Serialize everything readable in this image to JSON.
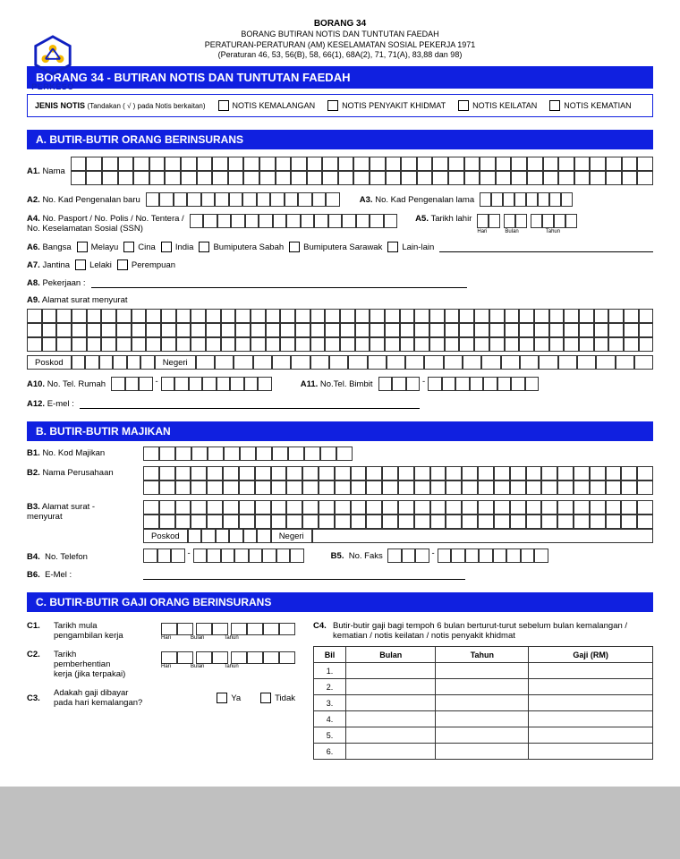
{
  "org_name": "PERKESO",
  "header": {
    "form_no": "BORANG 34",
    "line2": "BORANG BUTIRAN NOTIS DAN TUNTUTAN FAEDAH",
    "line3": "PERATURAN-PERATURAN (AM) KESELAMATAN SOSIAL PEKERJA 1971",
    "line4": "(Peraturan 46, 53, 56(B), 58, 66(1), 68A(2), 71, 71(A), 83,88 dan 98)"
  },
  "title_bar": "BORANG 34 - BUTIRAN  NOTIS DAN TUNTUTAN FAEDAH",
  "notice": {
    "lead": "JENIS NOTIS",
    "sub": "(Tandakan ( √ ) pada Notis berkaitan)",
    "opts": [
      "NOTIS KEMALANGAN",
      "NOTIS PENYAKIT KHIDMAT",
      "NOTIS KEILATAN",
      "NOTIS KEMATIAN"
    ]
  },
  "secA": {
    "title": "A.   BUTIR-BUTIR  ORANG BERINSURANS",
    "a1": "Nama",
    "a2": "No. Kad Pengenalan baru",
    "a3": "No. Kad Pengenalan lama",
    "a4": "No. Pasport / No. Polis / No. Tentera /\nNo. Keselamatan Sosial (SSN)",
    "a5": "Tarikh lahir",
    "a5_sub": [
      "Hari",
      "Bulan",
      "Tahun"
    ],
    "a6": "Bangsa",
    "a6_opts": [
      "Melayu",
      "Cina",
      "India",
      "Bumiputera Sabah",
      "Bumiputera Sarawak",
      "Lain-lain"
    ],
    "a7": "Jantina",
    "a7_opts": [
      "Lelaki",
      "Perempuan"
    ],
    "a8": "Pekerjaan :",
    "a9": "Alamat surat menyurat",
    "poskod": "Poskod",
    "negeri": "Negeri",
    "a10": "No. Tel. Rumah",
    "a11": "No.Tel. Bimbit",
    "a12": "E-mel :"
  },
  "secB": {
    "title": "B.    BUTIR-BUTIR MAJIKAN",
    "b1": "No. Kod Majikan",
    "b2": "Nama Perusahaan",
    "b3": "Alamat surat -\nmenyurat",
    "poskod": "Poskod",
    "negeri": "Negeri",
    "b4": "No. Telefon",
    "b5": "No. Faks",
    "b6": "E-Mel :"
  },
  "secC": {
    "title": "C.    BUTIR-BUTIR GAJI ORANG BERINSURANS",
    "c1": "Tarikh mula\npengambilan kerja",
    "c2": "Tarikh\npemberhentian\nkerja (jika terpakai)",
    "c3": "Adakah gaji dibayar\npada hari kemalangan?",
    "c3_opts": [
      "Ya",
      "Tidak"
    ],
    "c4": "Butir-butir gaji bagi tempoh 6 bulan berturut-turut sebelum bulan kemalangan / kematian / notis keilatan / notis penyakit khidmat",
    "date_sub": [
      "Hari",
      "Bulan",
      "Tahun"
    ],
    "table": {
      "headers": [
        "Bil",
        "Bulan",
        "Tahun",
        "Gaji (RM)"
      ],
      "rows": [
        "1.",
        "2.",
        "3.",
        "4.",
        "5.",
        "6."
      ]
    }
  },
  "colors": {
    "brand_blue": "#1020e0"
  }
}
